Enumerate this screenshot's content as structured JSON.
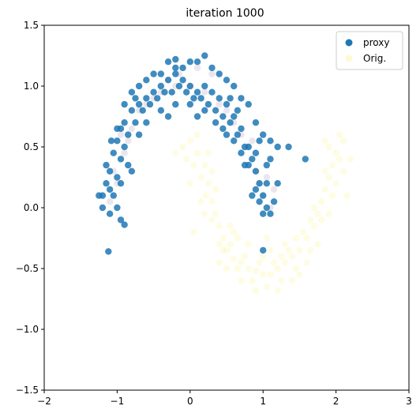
{
  "chart_data": {
    "type": "scatter",
    "title": "iteration 1000",
    "xlim": [
      -2,
      3
    ],
    "ylim": [
      -1.5,
      1.5
    ],
    "xticks": [
      -2,
      -1,
      0,
      1,
      2,
      3
    ],
    "yticks": [
      -1.5,
      -1.0,
      -0.5,
      0.0,
      0.5,
      1.0,
      1.5
    ],
    "xtick_labels": [
      "−2",
      "−1",
      "0",
      "1",
      "2",
      "3"
    ],
    "ytick_labels": [
      "−1.5",
      "−1.0",
      "−0.5",
      "0.0",
      "0.5",
      "1.0",
      "1.5"
    ],
    "grid": false,
    "legend_position": "top-right",
    "series": [
      {
        "name": "Orig.",
        "color": "#fde725",
        "alpha": 0.12,
        "points": [
          [
            0.0,
            0.55
          ],
          [
            0.1,
            0.45
          ],
          [
            0.2,
            0.35
          ],
          [
            0.25,
            0.2
          ],
          [
            0.3,
            0.05
          ],
          [
            0.35,
            -0.05
          ],
          [
            0.4,
            -0.15
          ],
          [
            0.45,
            -0.25
          ],
          [
            0.5,
            -0.35
          ],
          [
            0.6,
            -0.42
          ],
          [
            0.7,
            -0.45
          ],
          [
            0.8,
            -0.5
          ],
          [
            0.9,
            -0.52
          ],
          [
            1.0,
            -0.55
          ],
          [
            1.1,
            -0.55
          ],
          [
            1.2,
            -0.5
          ],
          [
            1.3,
            -0.45
          ],
          [
            1.4,
            -0.4
          ],
          [
            1.5,
            -0.35
          ],
          [
            1.6,
            -0.25
          ],
          [
            1.7,
            -0.15
          ],
          [
            1.75,
            -0.05
          ],
          [
            1.8,
            0.05
          ],
          [
            1.85,
            0.15
          ],
          [
            1.9,
            0.25
          ],
          [
            1.95,
            0.35
          ],
          [
            2.0,
            0.45
          ],
          [
            2.05,
            0.4
          ],
          [
            2.1,
            0.3
          ],
          [
            1.9,
            0.5
          ],
          [
            0.05,
            0.35
          ],
          [
            0.15,
            0.25
          ],
          [
            0.22,
            0.1
          ],
          [
            0.3,
            -0.1
          ],
          [
            0.45,
            -0.35
          ],
          [
            0.55,
            -0.3
          ],
          [
            0.65,
            -0.5
          ],
          [
            0.75,
            -0.4
          ],
          [
            0.85,
            -0.6
          ],
          [
            0.95,
            -0.45
          ],
          [
            1.05,
            -0.65
          ],
          [
            1.15,
            -0.45
          ],
          [
            1.25,
            -0.6
          ],
          [
            1.35,
            -0.35
          ],
          [
            1.45,
            -0.5
          ],
          [
            1.55,
            -0.2
          ],
          [
            1.65,
            -0.35
          ],
          [
            1.7,
            0.0
          ],
          [
            1.8,
            -0.1
          ],
          [
            1.85,
            0.3
          ],
          [
            2.0,
            0.2
          ],
          [
            2.1,
            0.55
          ],
          [
            1.95,
            0.1
          ],
          [
            0.0,
            0.2
          ],
          [
            0.1,
            0.6
          ],
          [
            -0.1,
            0.5
          ],
          [
            0.35,
            0.15
          ],
          [
            0.4,
            -0.45
          ],
          [
            0.6,
            -0.2
          ],
          [
            0.9,
            -0.68
          ],
          [
            1.0,
            -0.4
          ],
          [
            1.2,
            -0.68
          ],
          [
            1.4,
            -0.6
          ],
          [
            1.6,
            -0.45
          ],
          [
            1.75,
            -0.3
          ],
          [
            2.2,
            0.4
          ],
          [
            2.15,
            0.1
          ],
          [
            1.85,
            0.55
          ],
          [
            0.2,
            -0.05
          ],
          [
            0.5,
            -0.5
          ],
          [
            0.7,
            -0.6
          ],
          [
            1.1,
            -0.35
          ],
          [
            1.3,
            -0.3
          ],
          [
            1.5,
            -0.55
          ],
          [
            0.25,
            0.45
          ],
          [
            -0.05,
            0.4
          ],
          [
            0.15,
            0.05
          ],
          [
            0.55,
            -0.15
          ],
          [
            0.8,
            -0.3
          ],
          [
            1.9,
            -0.05
          ],
          [
            -0.2,
            0.45
          ],
          [
            0.05,
            -0.2
          ],
          [
            0.3,
            0.3
          ],
          [
            0.65,
            -0.25
          ],
          [
            1.05,
            -0.25
          ],
          [
            1.25,
            -0.4
          ],
          [
            1.45,
            -0.25
          ],
          [
            1.65,
            -0.1
          ],
          [
            2.05,
            0.6
          ],
          [
            0.4,
            -0.3
          ]
        ]
      },
      {
        "name": "",
        "color": "#7b4f8f",
        "alpha": 0.15,
        "points": [
          [
            -1.0,
            0.2
          ],
          [
            -0.9,
            0.45
          ],
          [
            -0.8,
            0.65
          ],
          [
            -0.6,
            0.85
          ],
          [
            -0.4,
            0.95
          ],
          [
            -0.2,
            1.0
          ],
          [
            0.0,
            1.0
          ],
          [
            0.2,
            0.95
          ],
          [
            0.4,
            0.85
          ],
          [
            0.6,
            0.7
          ],
          [
            0.8,
            0.5
          ],
          [
            0.9,
            0.3
          ],
          [
            1.0,
            0.1
          ],
          [
            1.1,
            0.0
          ],
          [
            -1.1,
            0.05
          ],
          [
            -0.95,
            0.6
          ],
          [
            -0.7,
            0.8
          ],
          [
            0.7,
            0.6
          ],
          [
            0.95,
            0.2
          ],
          [
            -0.3,
            1.05
          ],
          [
            0.3,
            1.1
          ],
          [
            -0.5,
            0.9
          ],
          [
            0.5,
            0.8
          ],
          [
            -1.05,
            0.3
          ],
          [
            1.05,
            0.25
          ],
          [
            0.85,
            0.55
          ],
          [
            -0.85,
            0.55
          ],
          [
            0.1,
            1.15
          ],
          [
            -0.15,
            1.1
          ],
          [
            1.15,
            0.15
          ]
        ]
      },
      {
        "name": "proxy",
        "color": "#1f77b4",
        "alpha": 0.85,
        "points": [
          [
            -1.2,
            0.1
          ],
          [
            -1.15,
            0.2
          ],
          [
            -1.1,
            0.3
          ],
          [
            -1.05,
            0.45
          ],
          [
            -1.0,
            0.55
          ],
          [
            -0.95,
            0.65
          ],
          [
            -0.9,
            0.7
          ],
          [
            -0.8,
            0.8
          ],
          [
            -0.7,
            0.85
          ],
          [
            -0.6,
            0.9
          ],
          [
            -0.5,
            0.95
          ],
          [
            -0.4,
            1.0
          ],
          [
            -0.3,
            1.05
          ],
          [
            -0.2,
            1.1
          ],
          [
            -0.1,
            1.05
          ],
          [
            0.0,
            1.0
          ],
          [
            0.1,
            0.95
          ],
          [
            0.2,
            1.0
          ],
          [
            0.3,
            0.95
          ],
          [
            0.4,
            0.9
          ],
          [
            0.5,
            0.85
          ],
          [
            0.6,
            0.75
          ],
          [
            0.7,
            0.65
          ],
          [
            0.8,
            0.5
          ],
          [
            0.85,
            0.4
          ],
          [
            0.9,
            0.3
          ],
          [
            0.95,
            0.2
          ],
          [
            1.0,
            0.1
          ],
          [
            1.05,
            0.0
          ],
          [
            1.1,
            -0.05
          ],
          [
            -1.05,
            0.1
          ],
          [
            -1.0,
            0.25
          ],
          [
            -0.95,
            0.4
          ],
          [
            -0.9,
            0.5
          ],
          [
            -0.85,
            0.6
          ],
          [
            -0.75,
            0.7
          ],
          [
            -0.65,
            0.8
          ],
          [
            -0.55,
            0.85
          ],
          [
            -0.45,
            0.9
          ],
          [
            -0.35,
            0.95
          ],
          [
            -0.25,
            0.95
          ],
          [
            -0.15,
            1.0
          ],
          [
            -0.05,
            0.95
          ],
          [
            0.05,
            0.9
          ],
          [
            0.15,
            0.9
          ],
          [
            0.25,
            0.85
          ],
          [
            0.35,
            0.8
          ],
          [
            0.45,
            0.75
          ],
          [
            0.55,
            0.7
          ],
          [
            0.65,
            0.6
          ],
          [
            0.75,
            0.5
          ],
          [
            0.8,
            0.35
          ],
          [
            0.9,
            0.15
          ],
          [
            1.0,
            -0.05
          ],
          [
            -1.1,
            -0.05
          ],
          [
            -1.2,
            0.0
          ],
          [
            -1.25,
            0.1
          ],
          [
            -1.1,
            0.15
          ],
          [
            -1.0,
            0.0
          ],
          [
            -0.95,
            -0.1
          ],
          [
            -0.9,
            -0.14
          ],
          [
            -1.12,
            -0.36
          ],
          [
            1.0,
            -0.35
          ],
          [
            1.2,
            0.5
          ],
          [
            1.35,
            0.5
          ],
          [
            1.58,
            0.4
          ],
          [
            1.2,
            0.2
          ],
          [
            1.1,
            0.4
          ],
          [
            -0.3,
            1.2
          ],
          [
            -0.2,
            1.15
          ],
          [
            0.0,
            1.2
          ],
          [
            0.1,
            1.2
          ],
          [
            0.2,
            1.25
          ],
          [
            -0.2,
            1.22
          ],
          [
            0.4,
            1.1
          ],
          [
            0.5,
            1.05
          ],
          [
            0.6,
            1.0
          ],
          [
            0.7,
            0.9
          ],
          [
            0.8,
            0.85
          ],
          [
            0.9,
            0.7
          ],
          [
            1.0,
            0.6
          ],
          [
            1.1,
            0.55
          ],
          [
            -0.6,
            1.05
          ],
          [
            -0.7,
            1.0
          ],
          [
            -0.8,
            0.95
          ],
          [
            -0.5,
            1.1
          ],
          [
            -0.4,
            1.1
          ],
          [
            -0.1,
            1.15
          ],
          [
            0.3,
            1.15
          ],
          [
            0.55,
            0.9
          ],
          [
            -0.85,
            0.35
          ],
          [
            -0.95,
            0.2
          ],
          [
            -0.8,
            0.3
          ],
          [
            0.85,
            0.1
          ],
          [
            0.95,
            0.05
          ],
          [
            1.05,
            0.2
          ],
          [
            0.75,
            0.35
          ],
          [
            0.7,
            0.45
          ],
          [
            -0.7,
            0.6
          ],
          [
            -0.6,
            0.7
          ],
          [
            -0.4,
            0.8
          ],
          [
            -0.2,
            0.85
          ],
          [
            0.0,
            0.85
          ],
          [
            0.2,
            0.8
          ],
          [
            0.35,
            0.7
          ],
          [
            0.5,
            0.6
          ],
          [
            0.6,
            0.55
          ],
          [
            -1.15,
            0.35
          ],
          [
            -1.08,
            0.55
          ],
          [
            1.15,
            0.05
          ],
          [
            -0.3,
            0.75
          ],
          [
            0.1,
            0.75
          ],
          [
            0.45,
            0.65
          ],
          [
            0.9,
            0.45
          ],
          [
            1.05,
            0.35
          ],
          [
            -1.0,
            0.65
          ],
          [
            -0.9,
            0.85
          ],
          [
            -0.75,
            0.9
          ],
          [
            0.65,
            0.8
          ],
          [
            0.95,
            0.55
          ]
        ]
      }
    ]
  }
}
